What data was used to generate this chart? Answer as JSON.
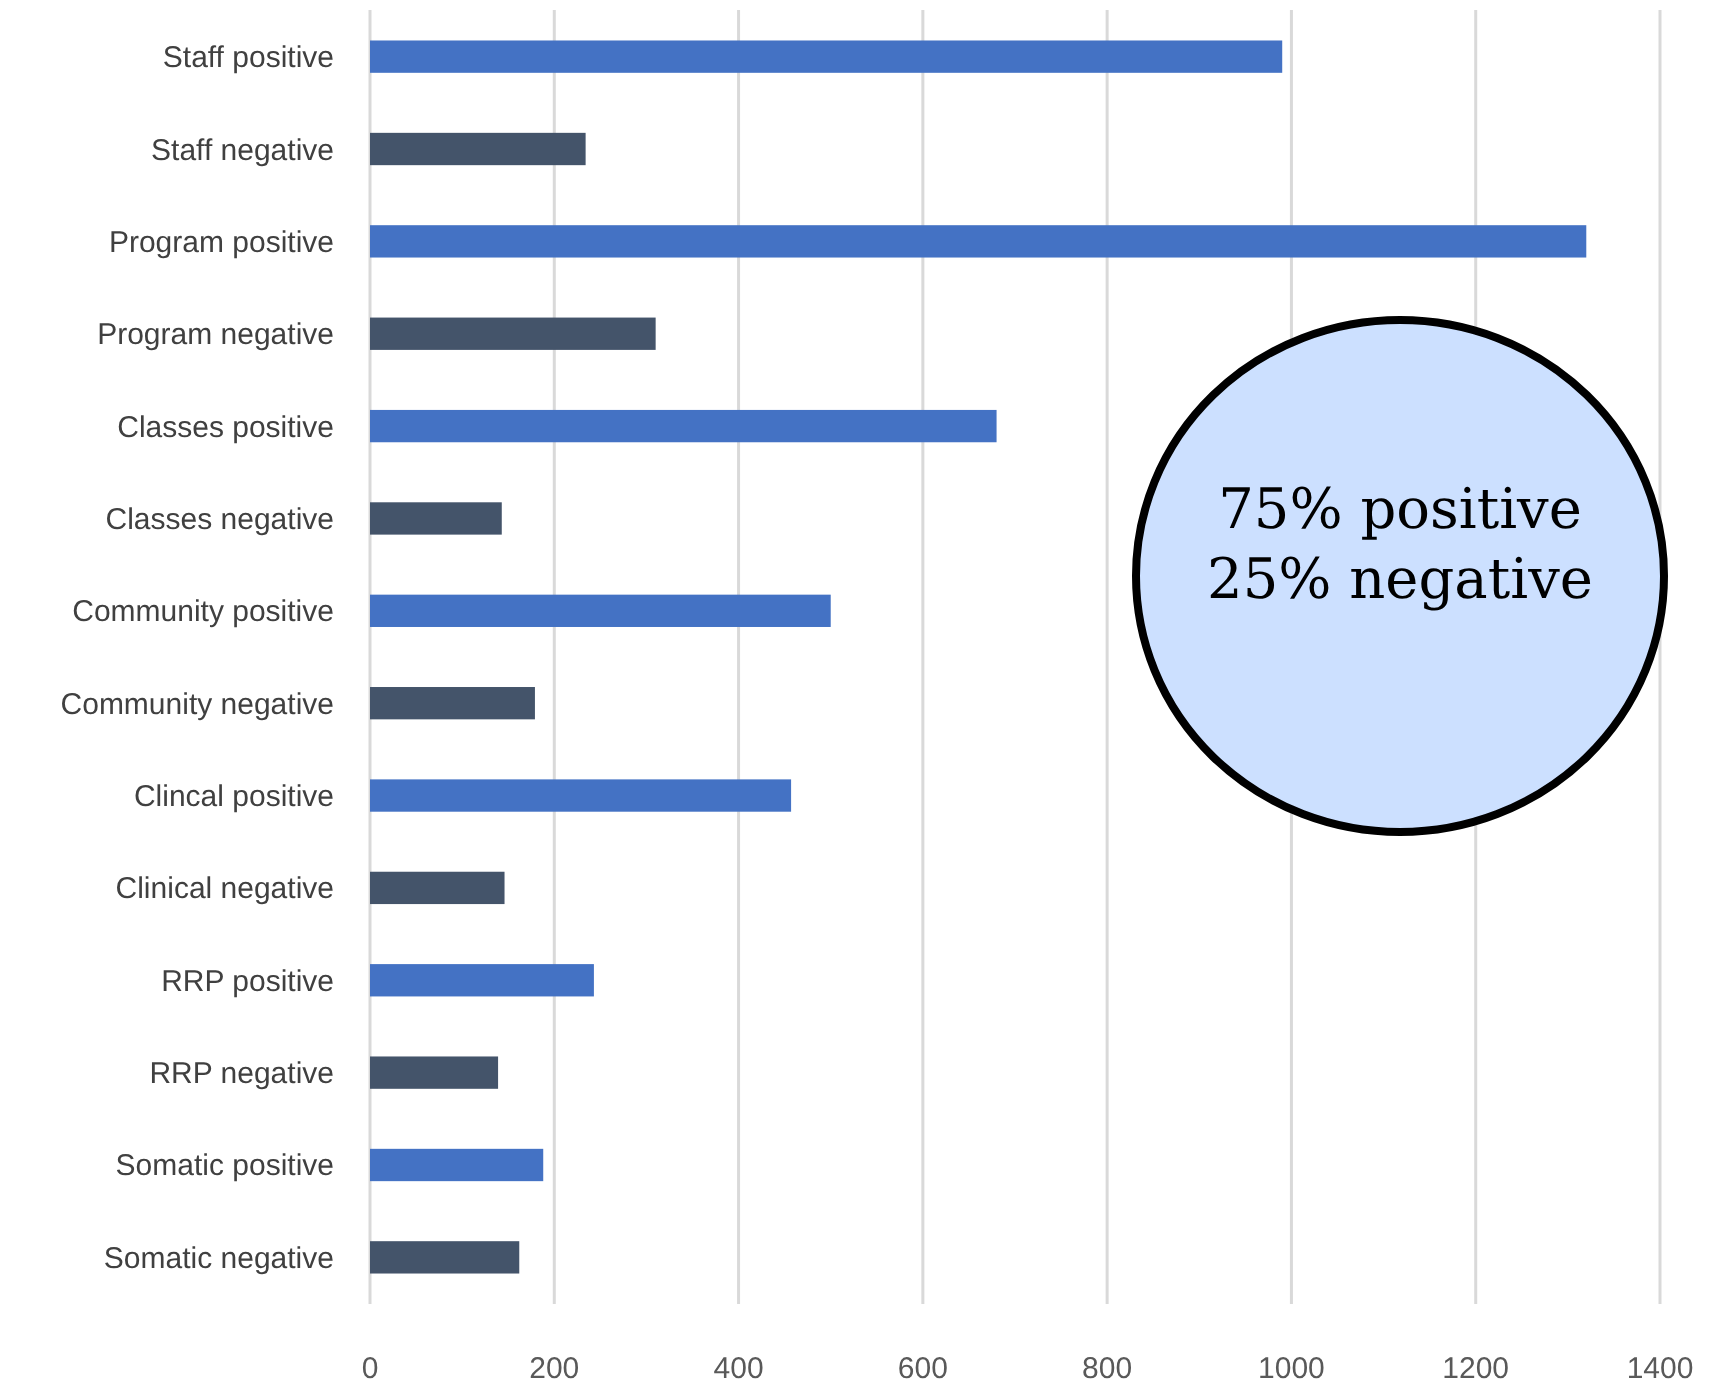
{
  "chart_data": {
    "type": "bar",
    "orientation": "horizontal",
    "categories": [
      "Staff positive",
      "Staff negative",
      "Program positive",
      "Program negative",
      "Classes positive",
      "Classes negative",
      "Community positive",
      "Community negative",
      "Clincal positive",
      "Clinical negative",
      "RRP positive",
      "RRP negative",
      "Somatic positive",
      "Somatic negative"
    ],
    "values": [
      990,
      234,
      1320,
      310,
      680,
      143,
      500,
      179,
      457,
      146,
      243,
      139,
      188,
      162
    ],
    "colors": [
      "#4472c4",
      "#44546a",
      "#4472c4",
      "#44546a",
      "#4472c4",
      "#44546a",
      "#4472c4",
      "#44546a",
      "#4472c4",
      "#44546a",
      "#4472c4",
      "#44546a",
      "#4472c4",
      "#44546a"
    ],
    "xlim": [
      0,
      1400
    ],
    "xticks": [
      0,
      200,
      400,
      600,
      800,
      1000,
      1200,
      1400
    ],
    "grid": "x",
    "annotations": [
      "75% positive",
      "25% negative"
    ]
  }
}
